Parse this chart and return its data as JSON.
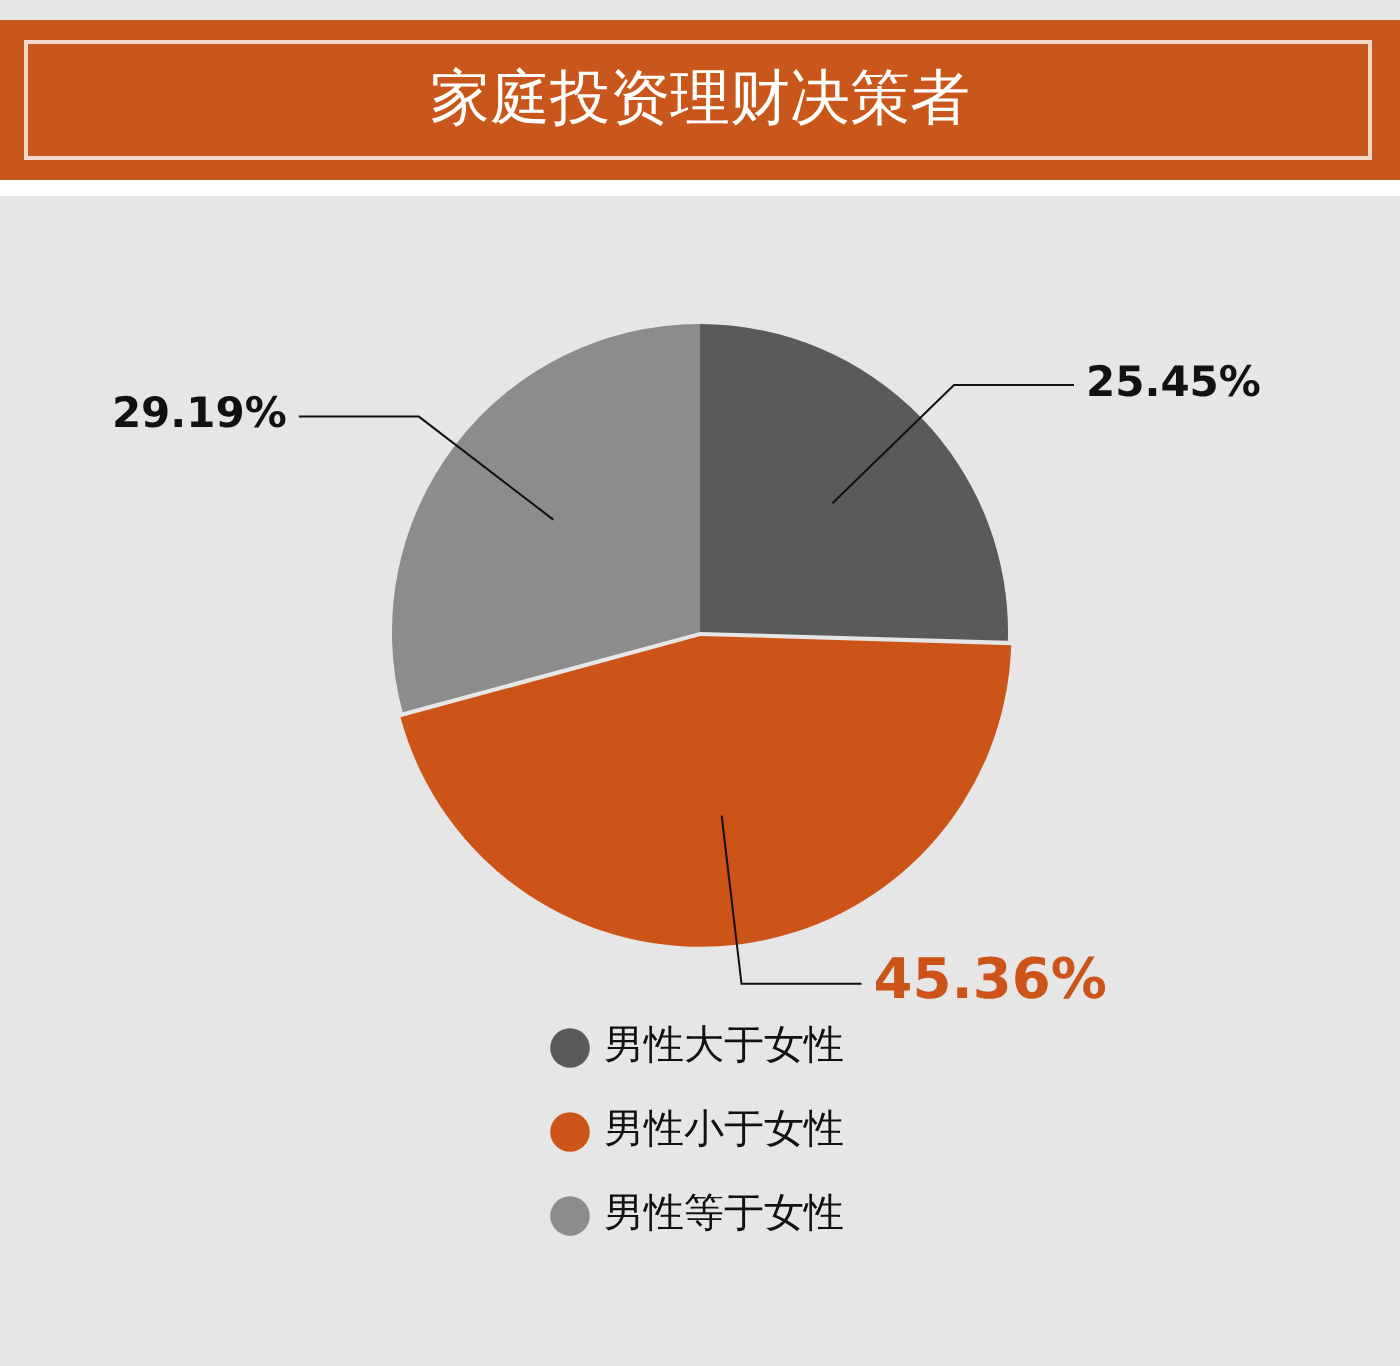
{
  "chart_data": {
    "type": "pie",
    "title": "家庭投资理财决策者",
    "categories": [
      "男性大于女性",
      "男性小于女性",
      "男性等于女性"
    ],
    "values": [
      25.45,
      45.36,
      29.19
    ],
    "colors": [
      "#5a5a5a",
      "#cc5418",
      "#8c8c8c"
    ],
    "value_labels": [
      "25.45%",
      "45.36%",
      "29.19%"
    ],
    "legend": "bottom"
  }
}
